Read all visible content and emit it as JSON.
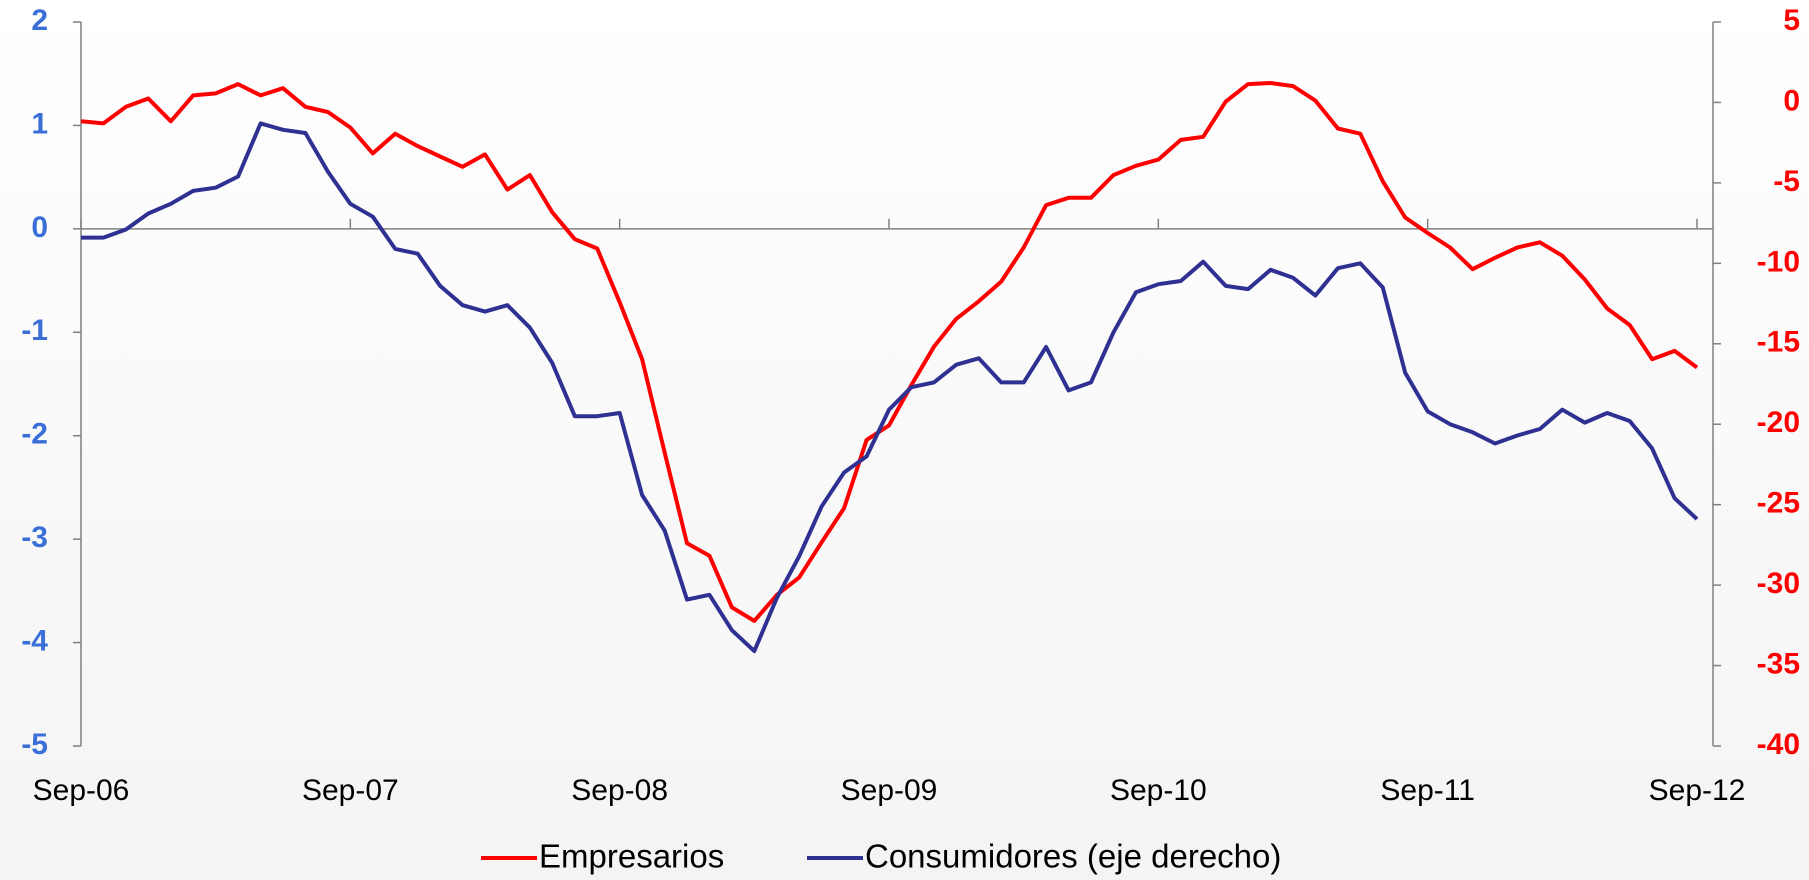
{
  "chart_data": {
    "type": "line",
    "categories": [
      "Sep-06",
      null,
      null,
      null,
      null,
      null,
      null,
      null,
      null,
      null,
      null,
      null,
      "Sep-07",
      null,
      null,
      null,
      null,
      null,
      null,
      null,
      null,
      null,
      null,
      null,
      "Sep-08",
      null,
      null,
      null,
      null,
      null,
      null,
      null,
      null,
      null,
      null,
      null,
      "Sep-09",
      null,
      null,
      null,
      null,
      null,
      null,
      null,
      null,
      null,
      null,
      null,
      "Sep-10",
      null,
      null,
      null,
      null,
      null,
      null,
      null,
      null,
      null,
      null,
      null,
      "Sep-11",
      null,
      null,
      null,
      null,
      null,
      null,
      null,
      null,
      null,
      null,
      null,
      "Sep-12"
    ],
    "series": [
      {
        "name": "Empresarios",
        "color": "#ff0000",
        "axis": "y",
        "values": [
          1.04,
          1.02,
          1.18,
          1.26,
          1.04,
          1.29,
          1.31,
          1.4,
          1.29,
          1.36,
          1.18,
          1.13,
          0.98,
          0.73,
          0.92,
          0.8,
          0.7,
          0.6,
          0.72,
          0.38,
          0.52,
          0.16,
          -0.1,
          -0.19,
          -0.71,
          -1.26,
          -2.16,
          -3.04,
          -3.16,
          -3.66,
          -3.79,
          -3.54,
          -3.37,
          -3.03,
          -2.7,
          -2.04,
          -1.9,
          -1.51,
          -1.14,
          -0.87,
          -0.7,
          -0.51,
          -0.18,
          0.23,
          0.3,
          0.3,
          0.52,
          0.61,
          0.67,
          0.86,
          0.89,
          1.23,
          1.4,
          1.41,
          1.38,
          1.24,
          0.97,
          0.92,
          0.46,
          0.11,
          -0.04,
          -0.18,
          -0.39,
          -0.28,
          -0.18,
          -0.13,
          -0.26,
          -0.49,
          -0.77,
          -0.93,
          -1.26,
          -1.18,
          -1.34
        ]
      },
      {
        "name": "Consumidores (eje derecho)",
        "color": "#2e3192",
        "axis": "y2",
        "values": [
          -8.4,
          -8.4,
          -7.9,
          -6.9,
          -6.3,
          -5.5,
          -5.3,
          -4.6,
          -1.3,
          -1.7,
          -1.9,
          -4.3,
          -6.3,
          -7.1,
          -9.1,
          -9.4,
          -11.4,
          -12.6,
          -13,
          -12.6,
          -14,
          -16.2,
          -19.5,
          -19.5,
          -19.3,
          -24.4,
          -26.6,
          -30.9,
          -30.6,
          -32.8,
          -34.1,
          -30.8,
          -28.2,
          -25.1,
          -23,
          -22,
          -19.1,
          -17.7,
          -17.4,
          -16.3,
          -15.9,
          -17.4,
          -17.4,
          -15.2,
          -17.9,
          -17.4,
          -14.3,
          -11.8,
          -11.3,
          -11.1,
          -9.9,
          -11.4,
          -11.6,
          -10.4,
          -10.9,
          -12,
          -10.3,
          -10,
          -11.5,
          -16.8,
          -19.2,
          -20,
          -20.5,
          -21.2,
          -20.7,
          -20.3,
          -19.1,
          -19.9,
          -19.3,
          -19.8,
          -21.5,
          -24.6,
          -25.9
        ]
      }
    ],
    "ylim": [
      -5,
      2
    ],
    "yticks": [
      2,
      1,
      0,
      -1,
      -2,
      -3,
      -4,
      -5
    ],
    "ytick_color": "#3a6fd8",
    "y2lim": [
      -40,
      5
    ],
    "y2ticks": [
      5,
      0,
      -5,
      -10,
      -15,
      -20,
      -25,
      -30,
      -35,
      -40
    ],
    "y2tick_color": "#ff0000"
  }
}
